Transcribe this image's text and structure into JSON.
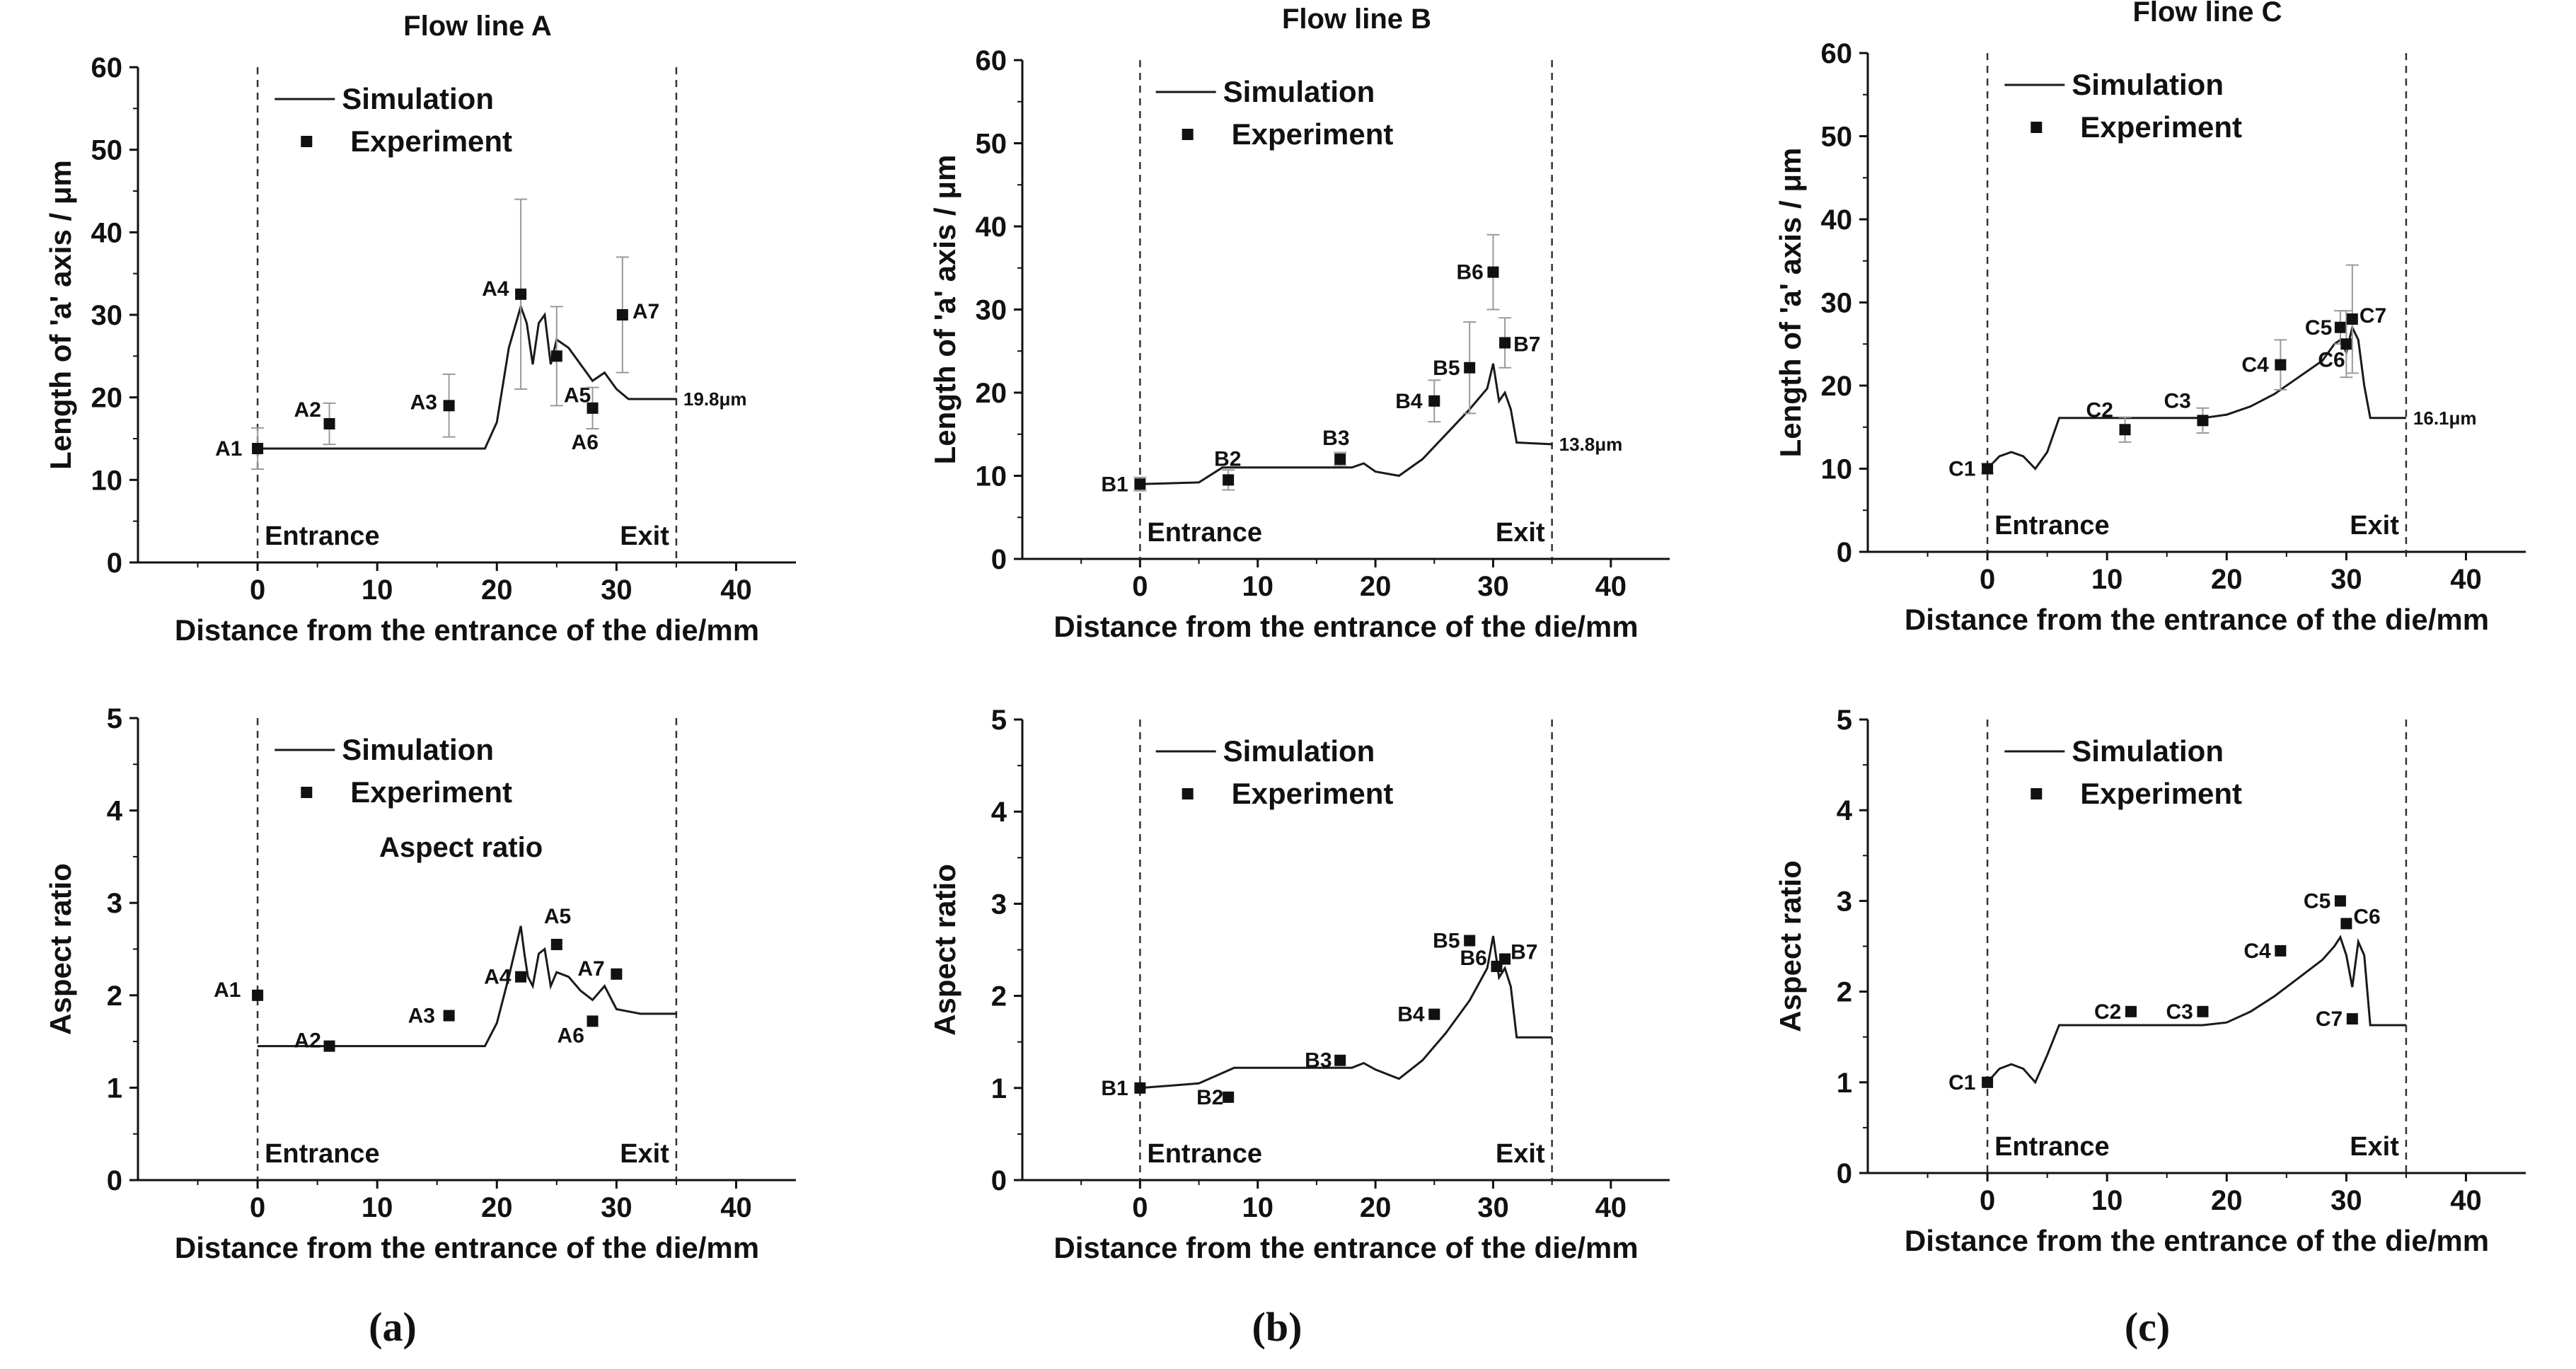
{
  "figure": {
    "captions": [
      "(a)",
      "(b)",
      "(c)"
    ]
  },
  "legend": {
    "simulation": "Simulation",
    "experiment": "Experiment"
  },
  "zones": {
    "entrance": "Entrance",
    "exit": "Exit"
  },
  "colors": {
    "line": "#1a1a1a",
    "marker": "#111111",
    "errorbar": "#9a9a9a",
    "axis": "#111111"
  },
  "chart_data": [
    {
      "type": "line",
      "panel": "a-top",
      "title": "Flow line A",
      "xlabel": "Distance from the entrance of the die/mm",
      "ylabel": "Length of 'a' axis / μm",
      "xlim": [
        -10,
        45
      ],
      "ylim": [
        0,
        60
      ],
      "xticks": [
        0,
        10,
        20,
        30,
        40
      ],
      "yticks": [
        0,
        10,
        20,
        30,
        40,
        50,
        60
      ],
      "entrance_x": 0,
      "exit_x": 35,
      "series": [
        {
          "name": "Simulation",
          "x": [
            0,
            19,
            20,
            21,
            22,
            22.5,
            23,
            23.5,
            24,
            24.5,
            25,
            26,
            27,
            28,
            29,
            30,
            31,
            35
          ],
          "y": [
            13.8,
            13.8,
            17,
            26,
            31,
            29,
            24,
            29,
            30,
            24,
            27,
            26,
            24,
            22,
            23,
            21,
            19.8,
            19.8
          ]
        },
        {
          "name": "Experiment",
          "points": [
            {
              "label": "A1",
              "x": 0,
              "y": 13.8,
              "err": 2.5
            },
            {
              "label": "A2",
              "x": 6,
              "y": 16.8,
              "err": 2.5
            },
            {
              "label": "A3",
              "x": 16,
              "y": 19,
              "err": 3.8
            },
            {
              "label": "A4",
              "x": 22,
              "y": 32.5,
              "err": 11.5
            },
            {
              "label": "A5",
              "x": 25,
              "y": 25,
              "err": 6
            },
            {
              "label": "A6",
              "x": 28,
              "y": 18.7,
              "err": 2.5
            },
            {
              "label": "A7",
              "x": 30.5,
              "y": 30,
              "err": 7
            }
          ]
        }
      ],
      "end_annotation": "19.8μm"
    },
    {
      "type": "line",
      "panel": "b-top",
      "title": "Flow line B",
      "xlabel": "Distance from the entrance of the die/mm",
      "ylabel": "Length of 'a' axis / μm",
      "xlim": [
        -10,
        45
      ],
      "ylim": [
        0,
        60
      ],
      "xticks": [
        0,
        10,
        20,
        30,
        40
      ],
      "yticks": [
        0,
        10,
        20,
        30,
        40,
        50,
        60
      ],
      "entrance_x": 0,
      "exit_x": 35,
      "series": [
        {
          "name": "Simulation",
          "x": [
            0,
            5,
            7,
            18,
            19,
            20,
            22,
            24,
            26,
            28,
            29.5,
            30,
            30.5,
            31,
            31.5,
            32,
            35
          ],
          "y": [
            9,
            9.2,
            11,
            11,
            11.5,
            10.5,
            10,
            12,
            15,
            18,
            20.5,
            23.5,
            19,
            20,
            18,
            14,
            13.8
          ]
        },
        {
          "name": "Experiment",
          "points": [
            {
              "label": "B1",
              "x": 0,
              "y": 9,
              "err": 0.8
            },
            {
              "label": "B2",
              "x": 7.5,
              "y": 9.5,
              "err": 1.2
            },
            {
              "label": "B3",
              "x": 17,
              "y": 12,
              "err": 0.8
            },
            {
              "label": "B4",
              "x": 25,
              "y": 19,
              "err": 2.5
            },
            {
              "label": "B5",
              "x": 28,
              "y": 23,
              "err": 5.5
            },
            {
              "label": "B6",
              "x": 30,
              "y": 34.5,
              "err": 4.5
            },
            {
              "label": "B7",
              "x": 31,
              "y": 26,
              "err": 3
            }
          ]
        }
      ],
      "end_annotation": "13.8μm"
    },
    {
      "type": "line",
      "panel": "c-top",
      "title": "Flow line C",
      "xlabel": "Distance from the entrance of the die/mm",
      "ylabel": "Length of 'a' axis / μm",
      "xlim": [
        -10,
        45
      ],
      "ylim": [
        0,
        60
      ],
      "xticks": [
        0,
        10,
        20,
        30,
        40
      ],
      "yticks": [
        0,
        10,
        20,
        30,
        40,
        50,
        60
      ],
      "entrance_x": 0,
      "exit_x": 35,
      "series": [
        {
          "name": "Simulation",
          "x": [
            0,
            1,
            2,
            3,
            4,
            5,
            6,
            15,
            18,
            20,
            22,
            24,
            26,
            28,
            29,
            29.5,
            30,
            30.5,
            31,
            31.5,
            32,
            35
          ],
          "y": [
            10,
            11.5,
            12,
            11.5,
            10,
            12,
            16.1,
            16.1,
            16.1,
            16.5,
            17.5,
            19,
            21,
            23,
            25,
            25.5,
            24,
            27,
            25.5,
            20,
            16.1,
            16.1
          ]
        },
        {
          "name": "Experiment",
          "points": [
            {
              "label": "C1",
              "x": 0,
              "y": 10,
              "err": 0.6
            },
            {
              "label": "C2",
              "x": 11.5,
              "y": 14.7,
              "err": 1.5
            },
            {
              "label": "C3",
              "x": 18,
              "y": 15.8,
              "err": 1.5
            },
            {
              "label": "C4",
              "x": 24.5,
              "y": 22.5,
              "err": 3
            },
            {
              "label": "C5",
              "x": 29.5,
              "y": 27,
              "err": 2
            },
            {
              "label": "C6",
              "x": 30,
              "y": 25,
              "err": 4
            },
            {
              "label": "C7",
              "x": 30.5,
              "y": 28,
              "err": 6.5
            }
          ]
        }
      ],
      "end_annotation": "16.1μm"
    },
    {
      "type": "line",
      "panel": "a-bottom",
      "xlabel": "Distance from the entrance of the die/mm",
      "ylabel": "Aspect ratio",
      "xlim": [
        -10,
        45
      ],
      "ylim": [
        0,
        5
      ],
      "xticks": [
        0,
        10,
        20,
        30,
        40
      ],
      "yticks": [
        0,
        1,
        2,
        3,
        4,
        5
      ],
      "entrance_x": 0,
      "exit_x": 35,
      "annotation": "Aspect ratio",
      "series": [
        {
          "name": "Simulation",
          "x": [
            0,
            19,
            20,
            21,
            22,
            22.3,
            22.6,
            23,
            23.5,
            24,
            24.5,
            25,
            26,
            27,
            28,
            29,
            30,
            32,
            35
          ],
          "y": [
            1.45,
            1.45,
            1.7,
            2.2,
            2.75,
            2.45,
            2.2,
            2.1,
            2.45,
            2.5,
            2.1,
            2.25,
            2.2,
            2.05,
            1.95,
            2.1,
            1.85,
            1.8,
            1.8
          ]
        },
        {
          "name": "Experiment",
          "points": [
            {
              "label": "A1",
              "x": 0,
              "y": 2.0
            },
            {
              "label": "A2",
              "x": 6,
              "y": 1.45
            },
            {
              "label": "A3",
              "x": 16,
              "y": 1.78
            },
            {
              "label": "A4",
              "x": 22,
              "y": 2.2
            },
            {
              "label": "A5",
              "x": 25,
              "y": 2.55
            },
            {
              "label": "A6",
              "x": 28,
              "y": 1.72
            },
            {
              "label": "A7",
              "x": 30,
              "y": 2.23
            }
          ]
        }
      ]
    },
    {
      "type": "line",
      "panel": "b-bottom",
      "xlabel": "Distance from the entrance of the die/mm",
      "ylabel": "Aspect ratio",
      "xlim": [
        -10,
        45
      ],
      "ylim": [
        0,
        5
      ],
      "xticks": [
        0,
        10,
        20,
        30,
        40
      ],
      "yticks": [
        0,
        1,
        2,
        3,
        4,
        5
      ],
      "entrance_x": 0,
      "exit_x": 35,
      "series": [
        {
          "name": "Simulation",
          "x": [
            0,
            5,
            8,
            18,
            19,
            20,
            22,
            24,
            26,
            28,
            29.5,
            30,
            30.5,
            31,
            31.5,
            32,
            35
          ],
          "y": [
            1.0,
            1.05,
            1.22,
            1.22,
            1.27,
            1.2,
            1.1,
            1.3,
            1.6,
            1.95,
            2.3,
            2.65,
            2.2,
            2.3,
            2.1,
            1.55,
            1.55
          ]
        },
        {
          "name": "Experiment",
          "points": [
            {
              "label": "B1",
              "x": 0,
              "y": 1.0
            },
            {
              "label": "B2",
              "x": 7.5,
              "y": 0.9
            },
            {
              "label": "B3",
              "x": 17,
              "y": 1.3
            },
            {
              "label": "B4",
              "x": 25,
              "y": 1.8
            },
            {
              "label": "B5",
              "x": 28,
              "y": 2.6
            },
            {
              "label": "B6",
              "x": 30.3,
              "y": 2.32
            },
            {
              "label": "B7",
              "x": 31,
              "y": 2.4
            }
          ]
        }
      ]
    },
    {
      "type": "line",
      "panel": "c-bottom",
      "xlabel": "Distance from the entrance of the die/mm",
      "ylabel": "Aspect ratio",
      "xlim": [
        -10,
        45
      ],
      "ylim": [
        0,
        5
      ],
      "xticks": [
        0,
        10,
        20,
        30,
        40
      ],
      "yticks": [
        0,
        1,
        2,
        3,
        4,
        5
      ],
      "entrance_x": 0,
      "exit_x": 35,
      "series": [
        {
          "name": "Simulation",
          "x": [
            0,
            1,
            2,
            3,
            4,
            5,
            6,
            15,
            18,
            20,
            22,
            24,
            26,
            28,
            29,
            29.5,
            30,
            30.5,
            31,
            31.5,
            32,
            35
          ],
          "y": [
            1.0,
            1.15,
            1.2,
            1.15,
            1.0,
            1.3,
            1.63,
            1.63,
            1.63,
            1.66,
            1.78,
            1.95,
            2.15,
            2.35,
            2.5,
            2.6,
            2.4,
            2.05,
            2.55,
            2.4,
            1.63,
            1.63
          ]
        },
        {
          "name": "Experiment",
          "points": [
            {
              "label": "C1",
              "x": 0,
              "y": 1.0
            },
            {
              "label": "C2",
              "x": 12,
              "y": 1.78
            },
            {
              "label": "C3",
              "x": 18,
              "y": 1.78
            },
            {
              "label": "C4",
              "x": 24.5,
              "y": 2.45
            },
            {
              "label": "C5",
              "x": 29.5,
              "y": 3.0
            },
            {
              "label": "C6",
              "x": 30,
              "y": 2.75
            },
            {
              "label": "C7",
              "x": 30.5,
              "y": 1.7
            }
          ]
        }
      ]
    }
  ]
}
